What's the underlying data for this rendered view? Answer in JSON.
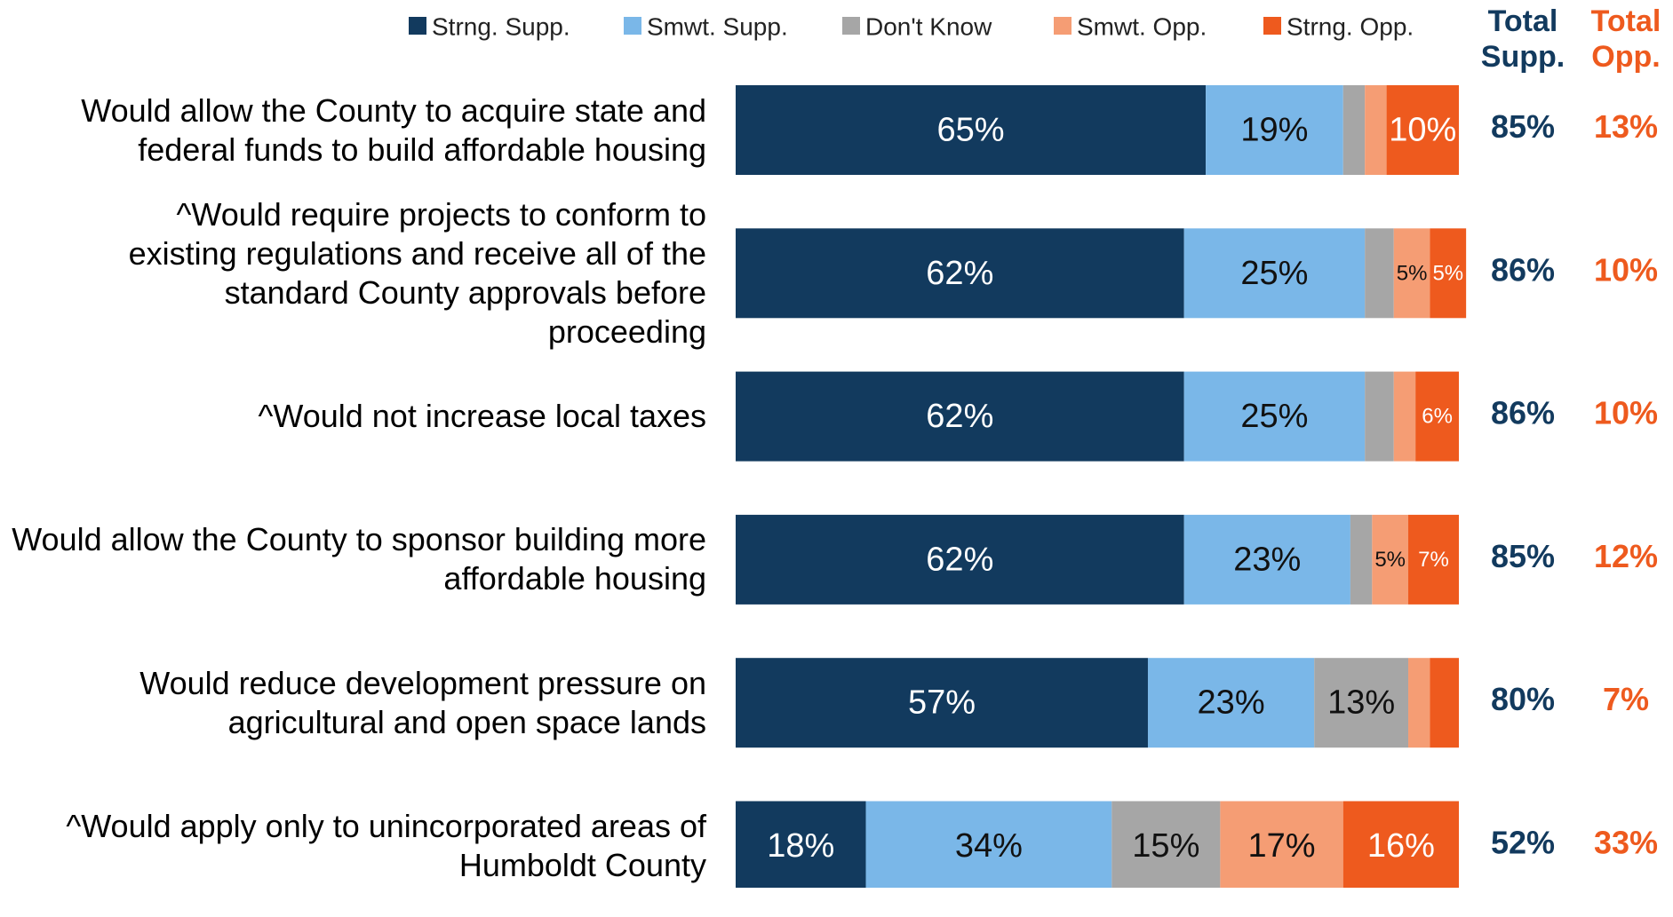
{
  "chart_data": {
    "type": "stacked-bar-horizontal",
    "categories": [
      "Would allow the County to acquire state and federal funds to build affordable housing",
      "^Would require projects to conform to existing regulations and receive all of the standard County approvals before proceeding",
      "^Would not increase local taxes",
      "Would allow the County to sponsor building more affordable housing",
      "Would reduce development pressure on agricultural and open space lands",
      "^Would apply only to unincorporated areas of Humboldt County"
    ],
    "xlim": [
      0,
      100
    ],
    "legend": "top",
    "series": [
      {
        "name": "Strng. Supp.",
        "color": "#123a5e",
        "values": [
          65,
          62,
          62,
          62,
          57,
          18
        ],
        "value_labels": [
          "65%",
          "62%",
          "62%",
          "62%",
          "57%",
          "18%"
        ]
      },
      {
        "name": "Smwt. Supp.",
        "color": "#7ab7e8",
        "values": [
          19,
          25,
          25,
          23,
          23,
          34
        ],
        "value_labels": [
          "19%",
          "25%",
          "25%",
          "23%",
          "23%",
          "34%"
        ]
      },
      {
        "name": "Don't Know",
        "color": "#a6a6a6",
        "values": [
          3,
          4,
          4,
          3,
          13,
          15
        ],
        "value_labels": [
          null,
          null,
          null,
          null,
          "13%",
          "15%"
        ]
      },
      {
        "name": "Smwt. Opp.",
        "color": "#f59d74",
        "values": [
          3,
          5,
          3,
          5,
          3,
          17
        ],
        "value_labels": [
          null,
          "5%",
          null,
          "5%",
          null,
          "17%"
        ]
      },
      {
        "name": "Strng. Opp.",
        "color": "#ee5a1e",
        "values": [
          10,
          5,
          6,
          7,
          4,
          16
        ],
        "value_labels": [
          "10%",
          "5%",
          "6%",
          "7%",
          null,
          "16%"
        ]
      }
    ],
    "totals": [
      {
        "name": "Total Supp.",
        "color": "#123a5e",
        "values": [
          85,
          86,
          86,
          85,
          80,
          52
        ],
        "value_labels": [
          "85%",
          "86%",
          "86%",
          "85%",
          "80%",
          "52%"
        ]
      },
      {
        "name": "Total Opp.",
        "color": "#ee5a1e",
        "values": [
          13,
          10,
          10,
          12,
          7,
          33
        ],
        "value_labels": [
          "13%",
          "10%",
          "10%",
          "12%",
          "7%",
          "33%"
        ]
      }
    ]
  }
}
